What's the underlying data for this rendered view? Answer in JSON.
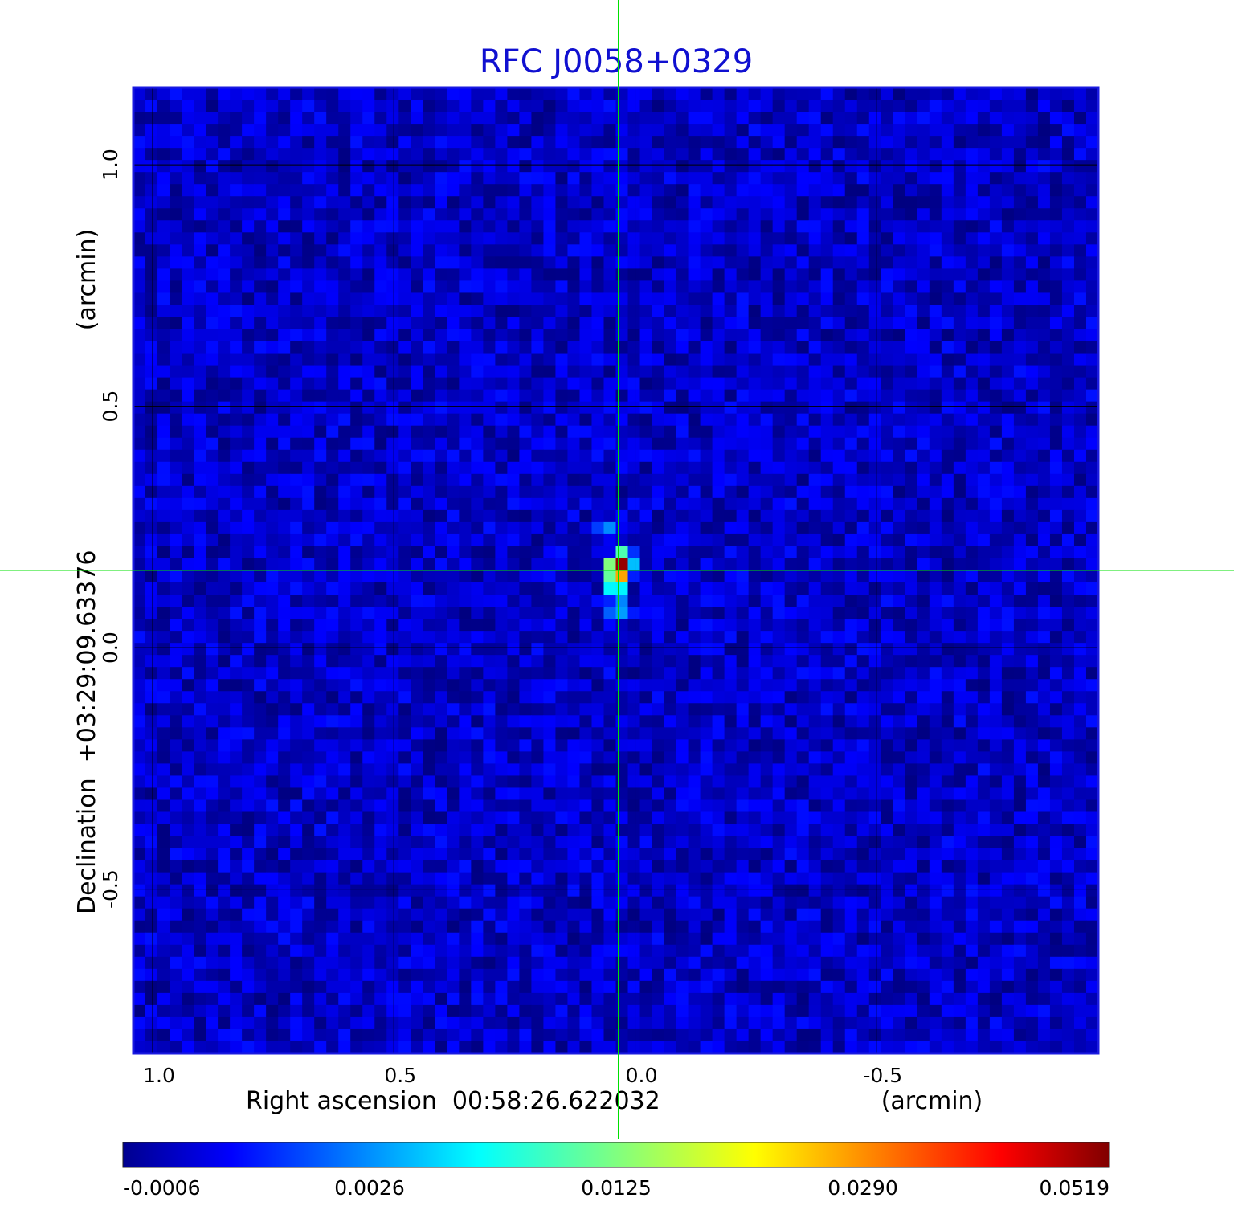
{
  "chart_data": {
    "type": "heatmap",
    "title": "RFC J0058+0329",
    "xlabel": "Right ascension  00:58:26.622032",
    "xunit": "(arcmin)",
    "ylabel": "Declination  +03:29:09.63376",
    "yunit": "(arcmin)",
    "xlim": [
      1.04,
      -0.96
    ],
    "ylim": [
      -0.84,
      1.16
    ],
    "x_ticks": [
      "1.0",
      "0.5",
      "0.0",
      "-0.5"
    ],
    "y_ticks": [
      "1.0",
      "0.5",
      "0.0",
      "-0.5"
    ],
    "grid": true,
    "x_tick_values": [
      1.0,
      0.5,
      0.0,
      -0.5
    ],
    "y_tick_values": [
      1.0,
      0.5,
      0.0,
      -0.5
    ],
    "crosshair": {
      "x": 0.035,
      "y": 0.16,
      "color": "#00e000"
    },
    "colorbar": {
      "ticks": [
        "-0.0006",
        "0.0026",
        "0.0125",
        "0.0290",
        "0.0519"
      ],
      "colormap": "jet",
      "min": -0.0006,
      "max": 0.0519
    },
    "peak": {
      "x": 0.035,
      "y": 0.16,
      "value": 0.0519
    },
    "background_level": 0.0003,
    "features": [
      {
        "x": 0.035,
        "y": 0.16,
        "value": 0.0519
      },
      {
        "x": 0.025,
        "y": 0.18,
        "value": 0.03
      },
      {
        "x": 0.04,
        "y": 0.12,
        "value": 0.012
      },
      {
        "x": 0.035,
        "y": 0.08,
        "value": 0.005
      },
      {
        "x": 0.06,
        "y": 0.24,
        "value": 0.004
      }
    ]
  },
  "colors": {
    "title": "#1010d0",
    "frame": "#1a1ae0",
    "grid": "#000000",
    "crosshair": "#00e000"
  }
}
